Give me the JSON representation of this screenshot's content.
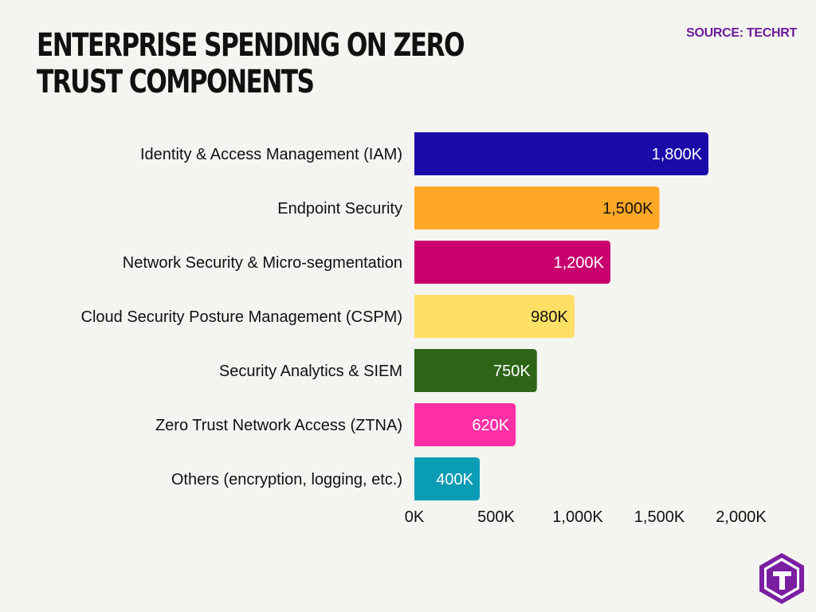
{
  "header": {
    "title": "ENTERPRISE SPENDING ON ZERO TRUST COMPONENTS",
    "source": "SOURCE: TECHRT"
  },
  "logo": {
    "icon": "techrt-logo-icon",
    "color": "#7b1fa2"
  },
  "chart_data": {
    "type": "bar",
    "orientation": "horizontal",
    "title": "ENTERPRISE SPENDING ON ZERO TRUST COMPONENTS",
    "xlabel": "",
    "ylabel": "",
    "xlim": [
      0,
      2000000
    ],
    "grid": false,
    "categories": [
      "Identity & Access Management (IAM)",
      "Endpoint Security",
      "Network Security & Micro-segmentation",
      "Cloud Security Posture Management (CSPM)",
      "Security Analytics & SIEM",
      "Zero Trust Network Access (ZTNA)",
      "Others (encryption, logging, etc.)"
    ],
    "values": [
      1800000,
      1500000,
      1200000,
      980000,
      750000,
      620000,
      400000
    ],
    "value_labels": [
      "1,800K",
      "1,500K",
      "1,200K",
      "980K",
      "750K",
      "620K",
      "400K"
    ],
    "colors": [
      "#1b0aa8",
      "#ffa726",
      "#c8006e",
      "#ffe066",
      "#2e6418",
      "#ff2fa6",
      "#0a9cb4"
    ],
    "label_colors": [
      "#ffffff",
      "#111111",
      "#ffffff",
      "#111111",
      "#ffffff",
      "#ffffff",
      "#ffffff"
    ],
    "x_ticks": [
      0,
      500000,
      1000000,
      1500000,
      2000000
    ],
    "x_tick_labels": [
      "0K",
      "500K",
      "1,000K",
      "1,500K",
      "2,000K"
    ]
  }
}
